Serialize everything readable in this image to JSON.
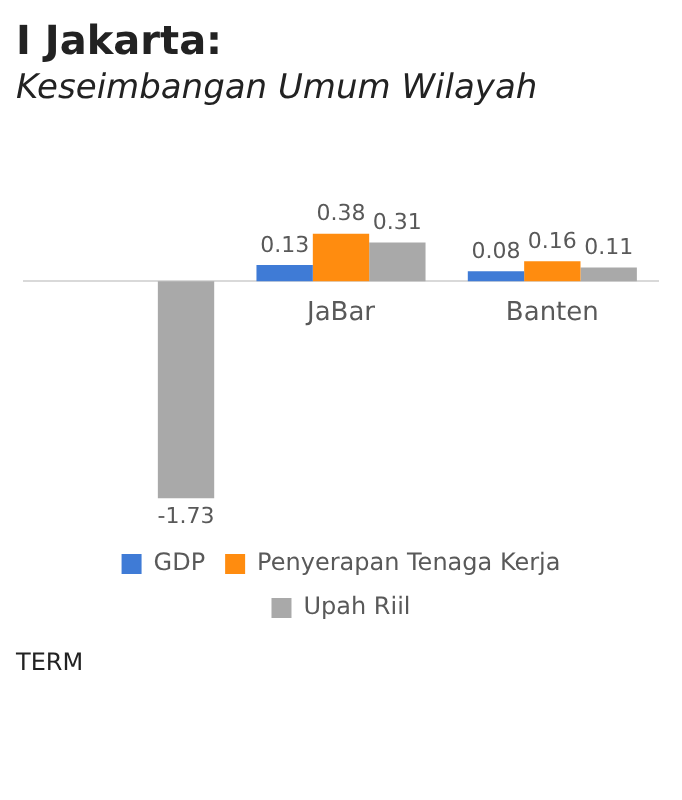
{
  "chart_data": {
    "type": "bar",
    "title": "I Jakarta:",
    "subtitle": "Keseimbangan Umum Wilayah",
    "categories": [
      null,
      "JaBar",
      "Banten"
    ],
    "series": [
      {
        "name": "GDP",
        "color": "#3f7bd6",
        "values": [
          null,
          0.13,
          0.08
        ]
      },
      {
        "name": "Penyerapan Tenaga Kerja",
        "color": "#ff8c0f",
        "values": [
          null,
          0.38,
          0.16
        ]
      },
      {
        "name": "Upah Riil",
        "color": "#a9a9a9",
        "values": [
          -1.73,
          0.31,
          0.11
        ]
      }
    ],
    "data_labels": true,
    "grid": false,
    "legend": "bottom",
    "annotations": [
      "TERM"
    ]
  }
}
